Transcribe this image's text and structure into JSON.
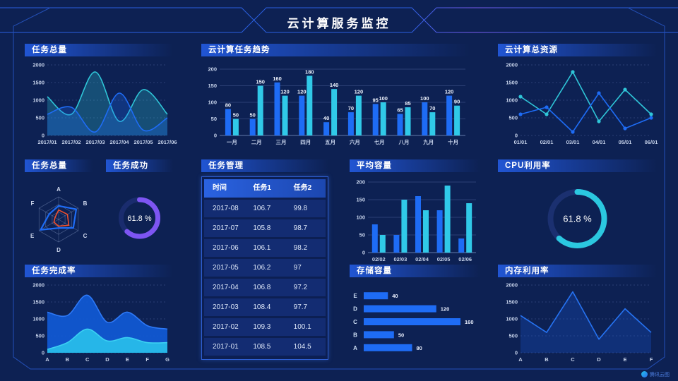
{
  "header": {
    "title": "云计算服务监控"
  },
  "watermark": {
    "label": "腾讯云图",
    "icon": "cloud-chart-logo"
  },
  "colors": {
    "background": "#0d2153",
    "accent_blue": "#1e6cf5",
    "accent_cyan": "#30c9e8",
    "accent_teal": "#2fc6d8",
    "accent_purple": "#7d55f2",
    "accent_orange": "#f0502d",
    "panel_header": "#2258da",
    "axis_text": "#c6d2ea"
  },
  "panels": {
    "tasks_total": {
      "title": "任务总量"
    },
    "task_trend": {
      "title": "云计算任务趋势"
    },
    "total_resources": {
      "title": "云计算总资源"
    },
    "tasks_radar": {
      "title": "任务总量"
    },
    "task_success": {
      "title": "任务成功"
    },
    "task_mgmt": {
      "title": "任务管理"
    },
    "avg_capacity": {
      "title": "平均容量"
    },
    "cpu_usage": {
      "title": "CPU利用率"
    },
    "completion_rate": {
      "title": "任务完成率"
    },
    "storage": {
      "title": "存储容量"
    },
    "memory": {
      "title": "内存利用率"
    }
  },
  "chart_data": [
    {
      "id": "tasks_total_line",
      "type": "line",
      "title": "任务总量",
      "smooth": true,
      "markers": false,
      "area": 0.27,
      "grid": "dashed",
      "x": [
        "2017/01",
        "2017/02",
        "2017/03",
        "2017/04",
        "2017/05",
        "2017/06"
      ],
      "ylim": [
        0,
        2000
      ],
      "yticks": [
        0,
        500,
        1000,
        1500,
        2000
      ],
      "series": [
        {
          "name": "series-cyan",
          "color": "#2fc6d8",
          "values": [
            1100,
            600,
            1800,
            400,
            1300,
            600
          ]
        },
        {
          "name": "series-blue",
          "color": "#1e6cf5",
          "values": [
            600,
            800,
            100,
            1200,
            150,
            500
          ]
        }
      ]
    },
    {
      "id": "task_trend_bar",
      "type": "bar",
      "title": "云计算任务趋势",
      "labels": true,
      "categories": [
        "一月",
        "二月",
        "三月",
        "四月",
        "五月",
        "六月",
        "七月",
        "八月",
        "九月",
        "十月"
      ],
      "ylim": [
        0,
        200
      ],
      "yticks": [
        0,
        50,
        100,
        150,
        200
      ],
      "series": [
        {
          "name": "任务1",
          "color": "#1e6cf5",
          "values": [
            80,
            50,
            160,
            120,
            40,
            70,
            95,
            65,
            100,
            120
          ]
        },
        {
          "name": "任务2",
          "color": "#30c9e8",
          "values": [
            50,
            150,
            120,
            180,
            140,
            120,
            100,
            85,
            70,
            90
          ]
        }
      ]
    },
    {
      "id": "total_resources_line",
      "type": "line",
      "title": "云计算总资源",
      "smooth": false,
      "markers": true,
      "area": 0,
      "grid": "dashed",
      "x": [
        "01/01",
        "02/01",
        "03/01",
        "04/01",
        "05/01",
        "06/01"
      ],
      "ylim": [
        0,
        2000
      ],
      "yticks": [
        0,
        500,
        1000,
        1500,
        2000
      ],
      "series": [
        {
          "name": "series-cyan",
          "color": "#2fc6d8",
          "values": [
            1100,
            600,
            1800,
            400,
            1300,
            600
          ]
        },
        {
          "name": "series-blue",
          "color": "#1e6cf5",
          "values": [
            600,
            800,
            100,
            1200,
            200,
            500
          ]
        }
      ]
    },
    {
      "id": "tasks_radar",
      "type": "radar",
      "title": "任务总量",
      "axes": [
        "A",
        "B",
        "C",
        "D",
        "E",
        "F"
      ],
      "max": 100,
      "series": [
        {
          "name": "series-blue",
          "color": "#1e6cf5",
          "values": [
            60,
            90,
            75,
            38,
            92,
            48
          ]
        },
        {
          "name": "series-orange",
          "color": "#f0502d",
          "values": [
            42,
            45,
            52,
            30,
            24,
            18
          ]
        }
      ]
    },
    {
      "id": "success_donut",
      "type": "donut",
      "title": "任务成功",
      "value": 61.8,
      "label": "61.8 %",
      "color": "#7d55f2",
      "track": "#1a2c6e",
      "radius": 26,
      "stroke": 7,
      "fontSize": 11
    },
    {
      "id": "task_table",
      "type": "table",
      "title": "任务管理",
      "columns": [
        "时间",
        "任务1",
        "任务2"
      ],
      "rows": [
        [
          "2017-08",
          "106.7",
          "99.8"
        ],
        [
          "2017-07",
          "105.8",
          "98.7"
        ],
        [
          "2017-06",
          "106.1",
          "98.2"
        ],
        [
          "2017-05",
          "106.2",
          "97"
        ],
        [
          "2017-04",
          "106.8",
          "97.2"
        ],
        [
          "2017-03",
          "108.4",
          "97.7"
        ],
        [
          "2017-02",
          "109.3",
          "100.1"
        ],
        [
          "2017-01",
          "108.5",
          "104.5"
        ]
      ]
    },
    {
      "id": "avg_capacity_bar",
      "type": "bar",
      "title": "平均容量",
      "labels": false,
      "categories": [
        "02/02",
        "02/03",
        "02/04",
        "02/05",
        "02/06"
      ],
      "ylim": [
        0,
        200
      ],
      "yticks": [
        0,
        50,
        100,
        150,
        200
      ],
      "series": [
        {
          "name": "series-blue",
          "color": "#1e6cf5",
          "values": [
            80,
            50,
            160,
            120,
            40
          ]
        },
        {
          "name": "series-cyan",
          "color": "#30c9e8",
          "values": [
            50,
            150,
            120,
            190,
            140
          ]
        }
      ]
    },
    {
      "id": "cpu_donut",
      "type": "donut",
      "title": "CPU利用率",
      "value": 61.8,
      "label": "61.8 %",
      "color": "#2bc8e0",
      "track": "#1b3070",
      "radius": 38,
      "stroke": 8,
      "fontSize": 13
    },
    {
      "id": "completion_area",
      "type": "line",
      "title": "任务完成率",
      "smooth": true,
      "markers": false,
      "grid": "dashed",
      "x": [
        "A",
        "B",
        "C",
        "D",
        "E",
        "F",
        "G"
      ],
      "ylim": [
        0,
        2000
      ],
      "yticks": [
        0,
        500,
        1000,
        1500,
        2000
      ],
      "series": [
        {
          "name": "series-blue",
          "color": "#2e79f7",
          "fill": "#1159d2",
          "fillOpacity": 0.95,
          "values": [
            1200,
            1100,
            1700,
            900,
            1200,
            800,
            700
          ]
        },
        {
          "name": "series-cyan",
          "color": "#3bd0f2",
          "fill": "#26b6e8",
          "fillOpacity": 1,
          "values": [
            100,
            300,
            700,
            350,
            450,
            300,
            300
          ]
        }
      ]
    },
    {
      "id": "storage_hbar",
      "type": "hbar",
      "title": "存储容量",
      "categories": [
        "E",
        "D",
        "C",
        "B",
        "A"
      ],
      "values": [
        40,
        120,
        160,
        50,
        80
      ],
      "color": "#1e6cf5",
      "xmax": 160
    },
    {
      "id": "memory_line",
      "type": "line",
      "title": "内存利用率",
      "smooth": false,
      "markers": false,
      "grid": "dashed",
      "x": [
        "A",
        "B",
        "C",
        "D",
        "E",
        "F"
      ],
      "ylim": [
        0,
        2000
      ],
      "yticks": [
        0,
        500,
        1000,
        1500,
        2000
      ],
      "series": [
        {
          "name": "series-blue",
          "color": "#2673f2",
          "fill": "#1a52c8",
          "fillOpacity": 0.32,
          "values": [
            1100,
            600,
            1800,
            400,
            1300,
            600
          ]
        }
      ]
    }
  ]
}
